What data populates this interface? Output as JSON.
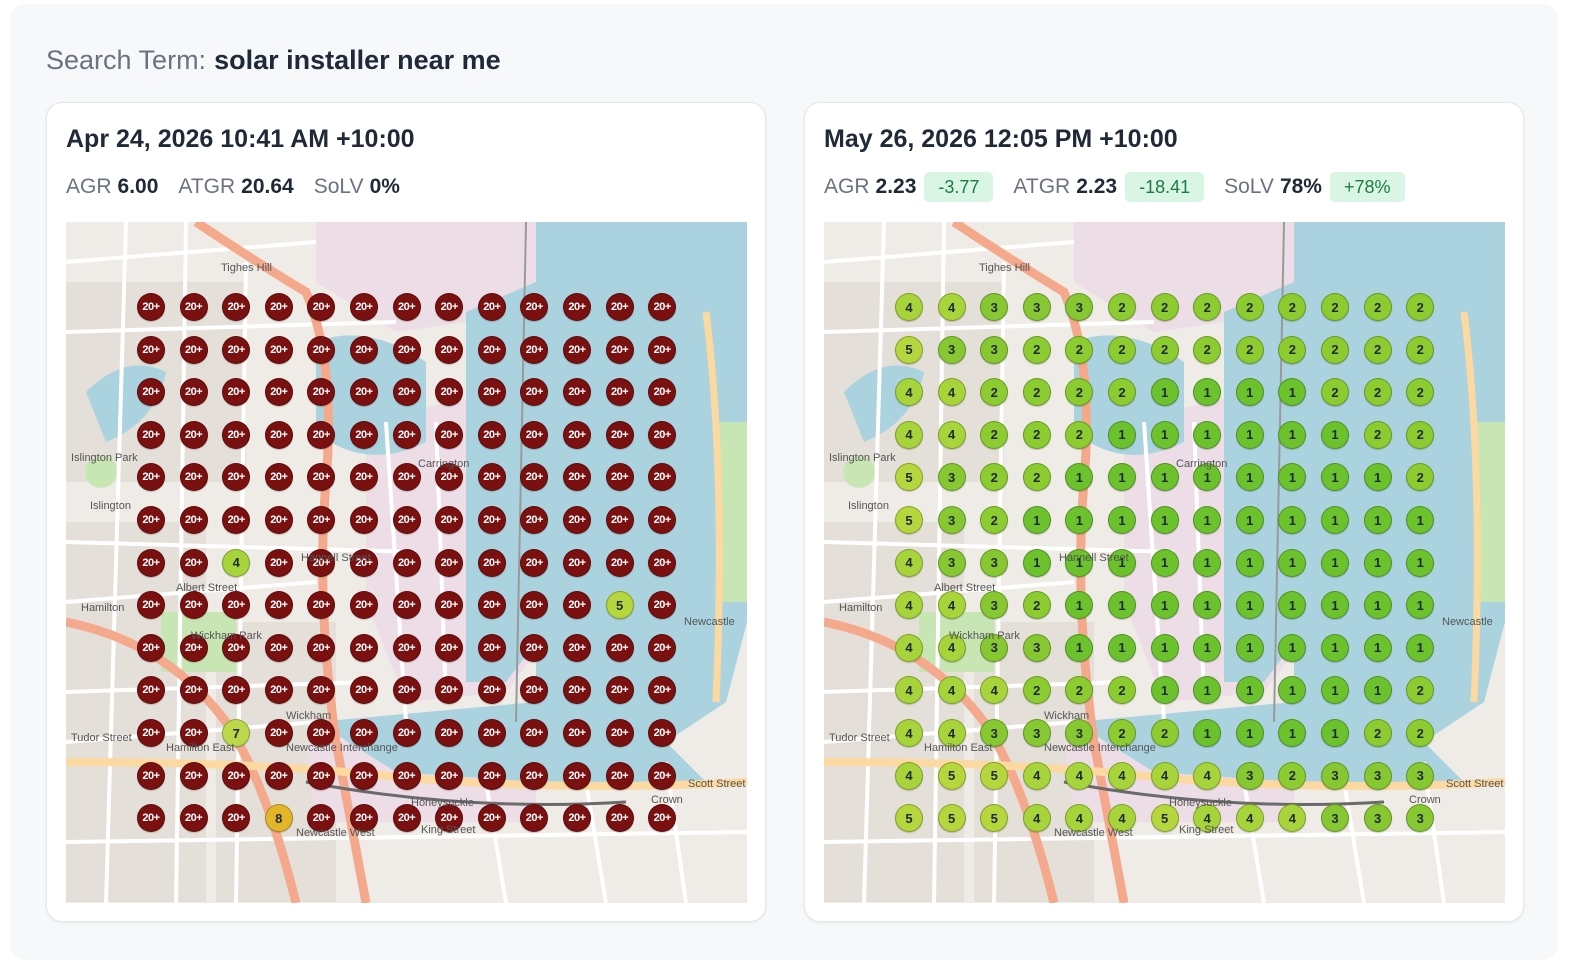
{
  "search": {
    "label": "Search Term:",
    "term": "solar installer near me"
  },
  "colors": {
    "r20": "#7a1010",
    "r1": "#6cc22d",
    "r2": "#8dcc30",
    "r3": "#86c732",
    "r4": "#a7d43a",
    "r5": "#b5d63c",
    "r7": "#bcd84a",
    "r8": "#e3b62a"
  },
  "snapshots": [
    {
      "title": "Apr 24, 2026 10:41 AM +10:00",
      "metrics": [
        {
          "label": "AGR",
          "value": "6.00",
          "delta": ""
        },
        {
          "label": "ATGR",
          "value": "20.64",
          "delta": ""
        },
        {
          "label": "SoLV",
          "value": "0%",
          "delta": ""
        }
      ],
      "grid": [
        [
          "20+",
          "20+",
          "20+",
          "20+",
          "20+",
          "20+",
          "20+",
          "20+",
          "20+",
          "20+",
          "20+",
          "20+",
          "20+"
        ],
        [
          "20+",
          "20+",
          "20+",
          "20+",
          "20+",
          "20+",
          "20+",
          "20+",
          "20+",
          "20+",
          "20+",
          "20+",
          "20+"
        ],
        [
          "20+",
          "20+",
          "20+",
          "20+",
          "20+",
          "20+",
          "20+",
          "20+",
          "20+",
          "20+",
          "20+",
          "20+",
          "20+"
        ],
        [
          "20+",
          "20+",
          "20+",
          "20+",
          "20+",
          "20+",
          "20+",
          "20+",
          "20+",
          "20+",
          "20+",
          "20+",
          "20+"
        ],
        [
          "20+",
          "20+",
          "20+",
          "20+",
          "20+",
          "20+",
          "20+",
          "20+",
          "20+",
          "20+",
          "20+",
          "20+",
          "20+"
        ],
        [
          "20+",
          "20+",
          "20+",
          "20+",
          "20+",
          "20+",
          "20+",
          "20+",
          "20+",
          "20+",
          "20+",
          "20+",
          "20+"
        ],
        [
          "20+",
          "20+",
          "4",
          "20+",
          "20+",
          "20+",
          "20+",
          "20+",
          "20+",
          "20+",
          "20+",
          "20+",
          "20+"
        ],
        [
          "20+",
          "20+",
          "20+",
          "20+",
          "20+",
          "20+",
          "20+",
          "20+",
          "20+",
          "20+",
          "20+",
          "5",
          "20+"
        ],
        [
          "20+",
          "20+",
          "20+",
          "20+",
          "20+",
          "20+",
          "20+",
          "20+",
          "20+",
          "20+",
          "20+",
          "20+",
          "20+"
        ],
        [
          "20+",
          "20+",
          "20+",
          "20+",
          "20+",
          "20+",
          "20+",
          "20+",
          "20+",
          "20+",
          "20+",
          "20+",
          "20+"
        ],
        [
          "20+",
          "20+",
          "7",
          "20+",
          "20+",
          "20+",
          "20+",
          "20+",
          "20+",
          "20+",
          "20+",
          "20+",
          "20+"
        ],
        [
          "20+",
          "20+",
          "20+",
          "20+",
          "20+",
          "20+",
          "20+",
          "20+",
          "20+",
          "20+",
          "20+",
          "20+",
          "20+"
        ],
        [
          "20+",
          "20+",
          "20+",
          "8",
          "20+",
          "20+",
          "20+",
          "20+",
          "20+",
          "20+",
          "20+",
          "20+",
          "20+"
        ]
      ]
    },
    {
      "title": "May 26, 2026 12:05 PM +10:00",
      "metrics": [
        {
          "label": "AGR",
          "value": "2.23",
          "delta": "-3.77"
        },
        {
          "label": "ATGR",
          "value": "2.23",
          "delta": "-18.41"
        },
        {
          "label": "SoLV",
          "value": "78%",
          "delta": "+78%"
        }
      ],
      "grid": [
        [
          "4",
          "4",
          "3",
          "3",
          "3",
          "2",
          "2",
          "2",
          "2",
          "2",
          "2",
          "2",
          "2"
        ],
        [
          "5",
          "3",
          "3",
          "2",
          "2",
          "2",
          "2",
          "2",
          "2",
          "2",
          "2",
          "2",
          "2"
        ],
        [
          "4",
          "4",
          "2",
          "2",
          "2",
          "2",
          "1",
          "1",
          "1",
          "1",
          "2",
          "2",
          "2"
        ],
        [
          "4",
          "4",
          "2",
          "2",
          "2",
          "1",
          "1",
          "1",
          "1",
          "1",
          "1",
          "2",
          "2"
        ],
        [
          "5",
          "3",
          "2",
          "2",
          "1",
          "1",
          "1",
          "1",
          "1",
          "1",
          "1",
          "1",
          "2"
        ],
        [
          "5",
          "3",
          "2",
          "1",
          "1",
          "1",
          "1",
          "1",
          "1",
          "1",
          "1",
          "1",
          "1"
        ],
        [
          "4",
          "3",
          "3",
          "1",
          "1",
          "1",
          "1",
          "1",
          "1",
          "1",
          "1",
          "1",
          "1"
        ],
        [
          "4",
          "4",
          "3",
          "2",
          "1",
          "1",
          "1",
          "1",
          "1",
          "1",
          "1",
          "1",
          "1"
        ],
        [
          "4",
          "4",
          "3",
          "3",
          "1",
          "1",
          "1",
          "1",
          "1",
          "1",
          "1",
          "1",
          "1"
        ],
        [
          "4",
          "4",
          "4",
          "2",
          "2",
          "2",
          "1",
          "1",
          "1",
          "1",
          "1",
          "1",
          "2"
        ],
        [
          "4",
          "4",
          "3",
          "3",
          "3",
          "2",
          "2",
          "1",
          "1",
          "1",
          "1",
          "2",
          "2"
        ],
        [
          "4",
          "5",
          "5",
          "4",
          "4",
          "4",
          "4",
          "4",
          "3",
          "2",
          "3",
          "3",
          "3"
        ],
        [
          "5",
          "5",
          "5",
          "4",
          "4",
          "4",
          "5",
          "4",
          "4",
          "4",
          "3",
          "3",
          "3"
        ]
      ]
    }
  ],
  "map_labels": {
    "a": "Tighes Hill",
    "b": "Islington",
    "c": "Carrington",
    "d": "Wickham",
    "e": "Hamilton",
    "f": "Hamilton East",
    "g": "Newcastle",
    "h": "Newcastle West",
    "i": "Honeysuckle",
    "j": "Newcastle Interchange",
    "k": "Wickham Park",
    "l": "Islington Park",
    "m": "Crown",
    "n": "Tudor Street",
    "o": "Albert Street",
    "p": "Scott Street",
    "q": "Hannell Street",
    "r": "King Street"
  }
}
